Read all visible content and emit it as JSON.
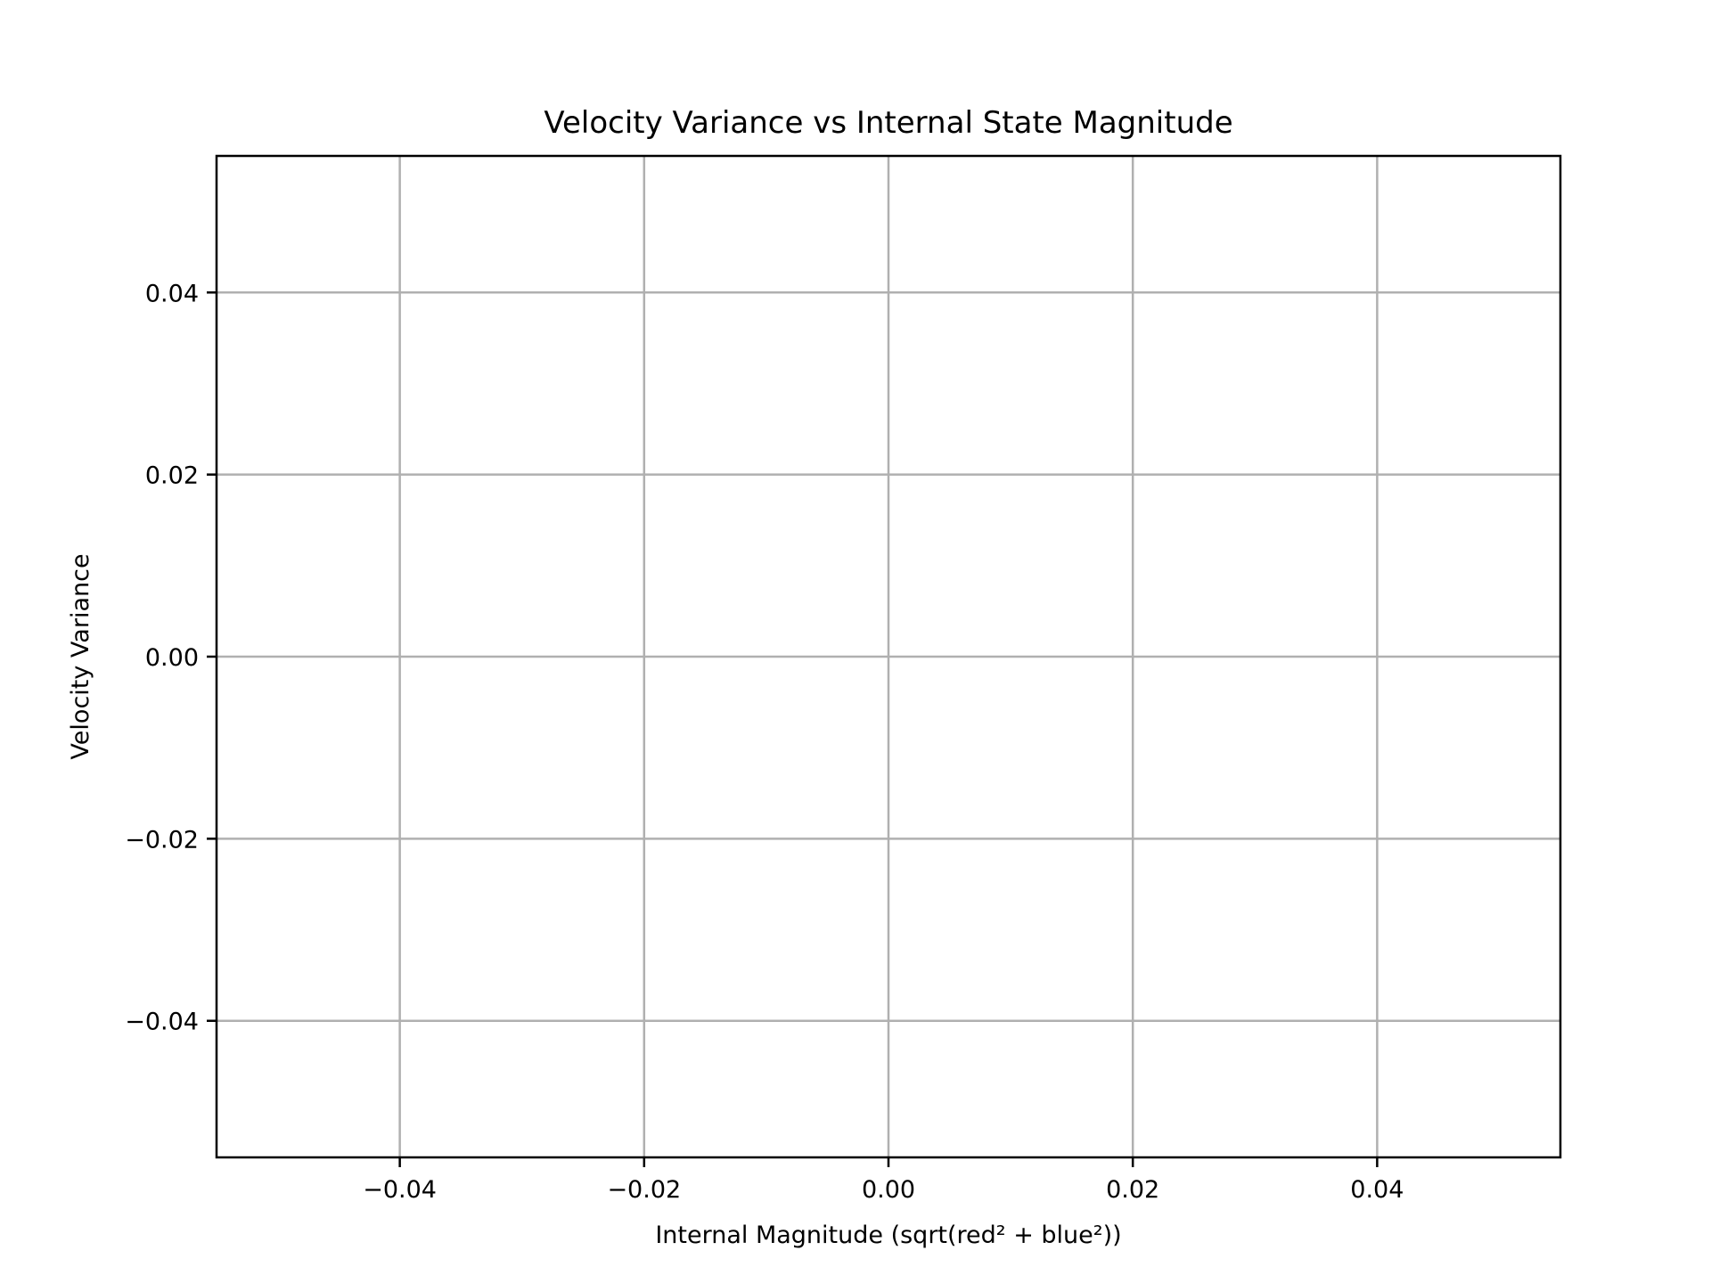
{
  "chart_data": {
    "type": "scatter",
    "title": "Velocity Variance vs Internal State Magnitude",
    "xlabel": "Internal Magnitude (sqrt(red² + blue²))",
    "ylabel": "Velocity Variance",
    "xlim": [
      -0.055,
      0.055
    ],
    "ylim": [
      -0.055,
      0.055
    ],
    "x_ticks": [
      -0.04,
      -0.02,
      0.0,
      0.02,
      0.04
    ],
    "x_tick_labels": [
      "−0.04",
      "−0.02",
      "0.00",
      "0.02",
      "0.04"
    ],
    "y_ticks": [
      -0.04,
      -0.02,
      0.0,
      0.02,
      0.04
    ],
    "y_tick_labels": [
      "−0.04",
      "−0.02",
      "0.00",
      "0.02",
      "0.04"
    ],
    "grid": true,
    "series": [
      {
        "x": [],
        "y": []
      }
    ]
  }
}
